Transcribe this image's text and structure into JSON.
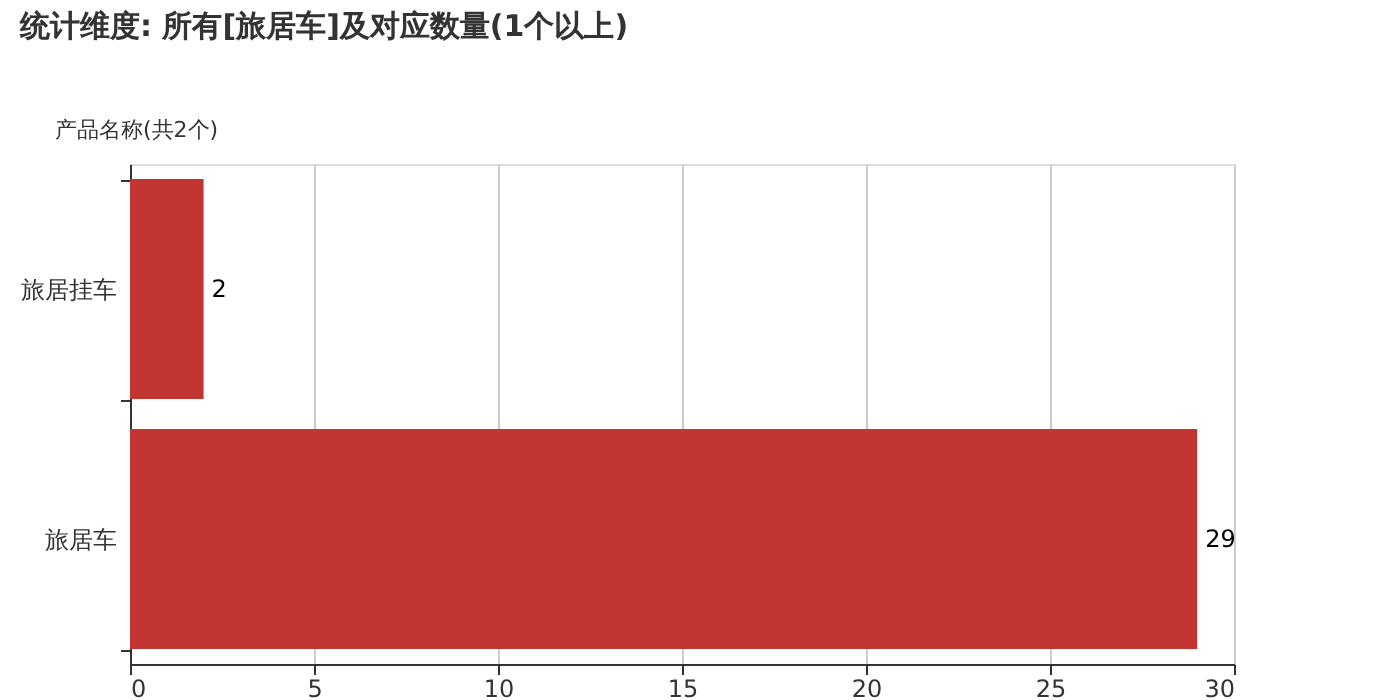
{
  "chart_data": {
    "type": "bar",
    "orientation": "horizontal",
    "title": "统计维度: 所有[旅居车]及对应数量(1个以上)",
    "ylabel": "产品名称(共2个)",
    "categories": [
      "旅居挂车",
      "旅居车"
    ],
    "values": [
      2,
      29
    ],
    "color": "#c23531",
    "xlim": [
      0,
      30
    ],
    "xticks": [
      0,
      5,
      10,
      15,
      20,
      25,
      30
    ],
    "grid": "x",
    "data_labels": true
  }
}
